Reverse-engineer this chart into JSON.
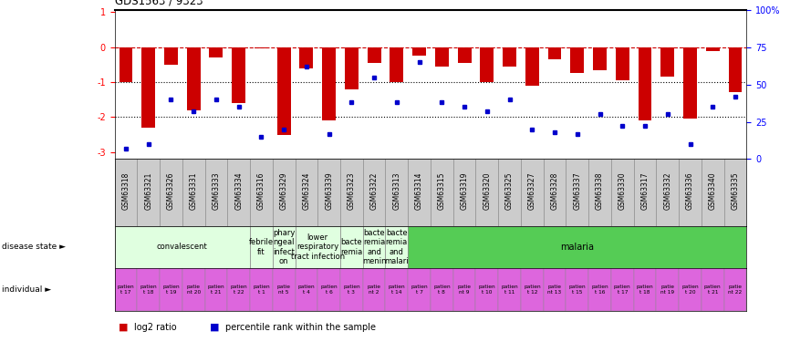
{
  "title": "GDS1563 / 9323",
  "samples": [
    "GSM63318",
    "GSM63321",
    "GSM63326",
    "GSM63331",
    "GSM63333",
    "GSM63334",
    "GSM63316",
    "GSM63329",
    "GSM63324",
    "GSM63339",
    "GSM63323",
    "GSM63322",
    "GSM63313",
    "GSM63314",
    "GSM63315",
    "GSM63319",
    "GSM63320",
    "GSM63325",
    "GSM63327",
    "GSM63328",
    "GSM63337",
    "GSM63338",
    "GSM63330",
    "GSM63317",
    "GSM63332",
    "GSM63336",
    "GSM63340",
    "GSM63335"
  ],
  "log2_ratio": [
    -1.0,
    -2.3,
    -0.5,
    -1.8,
    -0.3,
    -1.6,
    -0.05,
    -2.5,
    -0.6,
    -2.1,
    -1.2,
    -0.45,
    -1.0,
    -0.25,
    -0.55,
    -0.45,
    -1.0,
    -0.55,
    -1.1,
    -0.35,
    -0.75,
    -0.65,
    -0.95,
    -2.1,
    -0.85,
    -2.05,
    -0.12,
    -1.3
  ],
  "percentile_rank": [
    7,
    10,
    40,
    32,
    40,
    35,
    15,
    20,
    62,
    17,
    38,
    55,
    38,
    65,
    38,
    35,
    32,
    40,
    20,
    18,
    17,
    30,
    22,
    22,
    30,
    10,
    35,
    42
  ],
  "disease_state_groups": [
    {
      "label": "convalescent",
      "start": 0,
      "end": 5,
      "color": "#e0ffe0"
    },
    {
      "label": "febrile\nfit",
      "start": 6,
      "end": 6,
      "color": "#e0ffe0"
    },
    {
      "label": "phary\nngeal\ninfect\non",
      "start": 7,
      "end": 7,
      "color": "#e0ffe0"
    },
    {
      "label": "lower\nrespiratory\ntract infection",
      "start": 8,
      "end": 9,
      "color": "#e0ffe0"
    },
    {
      "label": "bacte\nremia",
      "start": 10,
      "end": 10,
      "color": "#e0ffe0"
    },
    {
      "label": "bacte\nremia\nand\nmenin",
      "start": 11,
      "end": 11,
      "color": "#e0ffe0"
    },
    {
      "label": "bacte\nremia\nand\nmalari",
      "start": 12,
      "end": 12,
      "color": "#e0ffe0"
    },
    {
      "label": "malaria",
      "start": 13,
      "end": 27,
      "color": "#55cc55"
    }
  ],
  "individual_labels": [
    "patien\nt 17",
    "patien\nt 18",
    "patien\nt 19",
    "patie\nnt 20",
    "patien\nt 21",
    "patien\nt 22",
    "patien\nt 1",
    "patie\nnt 5",
    "patien\nt 4",
    "patien\nt 6",
    "patien\nt 3",
    "patie\nnt 2",
    "patien\nt 14",
    "patien\nt 7",
    "patien\nt 8",
    "patie\nnt 9",
    "patien\nt 10",
    "patien\nt 11",
    "patien\nt 12",
    "patie\nnt 13",
    "patien\nt 15",
    "patien\nt 16",
    "patien\nt 17",
    "patien\nt 18",
    "patie\nnt 19",
    "patien\nt 20",
    "patien\nt 21",
    "patie\nnt 22"
  ],
  "bar_color": "#cc0000",
  "dot_color": "#0000cc",
  "ind_bg_color": "#dd66dd",
  "gsm_bg_color": "#cccccc",
  "ylim_left": [
    -3.2,
    1.05
  ],
  "ylim_right": [
    0,
    100
  ],
  "yticks_left": [
    1,
    0,
    -1,
    -2,
    -3
  ],
  "yticks_right": [
    100,
    75,
    50,
    25,
    0
  ],
  "ytick_labels_right": [
    "100%",
    "75",
    "50",
    "25",
    "0"
  ],
  "hline_positions": [
    0,
    -1,
    -2
  ],
  "hline_styles": [
    "--",
    ":",
    ":"
  ],
  "hline_colors": [
    "#cc0000",
    "#000000",
    "#000000"
  ]
}
